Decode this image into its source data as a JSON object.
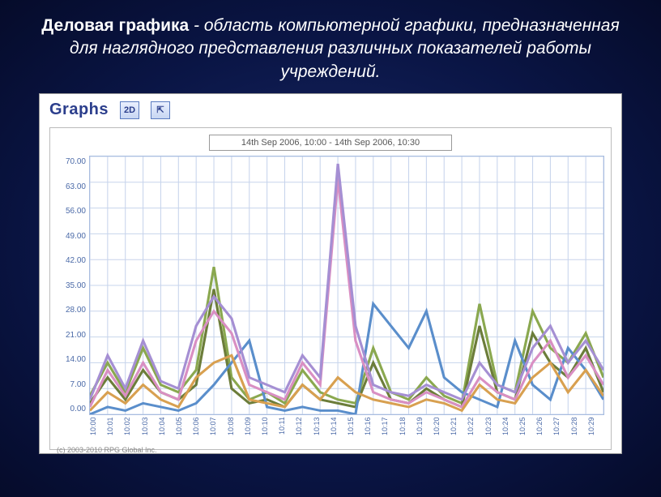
{
  "slide": {
    "title_bold": "Деловая графика",
    "title_rest": " - область компьютерной графики, предназначенная для наглядного представления различных показателей работы учреждений."
  },
  "panel": {
    "header_label": "Graphs",
    "btn_2d": "2D",
    "btn_tool": "⇱",
    "range_text": "14th Sep 2006, 10:00 - 14th Sep 2006, 10:30",
    "copyright": "(c) 2003-2010 RPG Global Inc."
  },
  "chart": {
    "type": "line",
    "background_color": "#ffffff",
    "grid_color": "#c7d4ec",
    "axis_color": "#a8bde0",
    "label_color": "#4b6aa8",
    "label_fontsize": 10,
    "ylim": [
      0,
      70
    ],
    "yticks": [
      "70.00",
      "63.00",
      "56.00",
      "49.00",
      "42.00",
      "35.00",
      "28.00",
      "21.00",
      "14.00",
      "7.00",
      "0.00"
    ],
    "x_count": 30,
    "xticks": [
      "10:00",
      "10:01",
      "10:02",
      "10:03",
      "10:04",
      "10:05",
      "10:06",
      "10:07",
      "10:08",
      "10:09",
      "10:10",
      "10:11",
      "10:12",
      "10:13",
      "10:14",
      "10:15",
      "10:16",
      "10:17",
      "10:18",
      "10:19",
      "10:20",
      "10:21",
      "10:22",
      "10:23",
      "10:24",
      "10:25",
      "10:26",
      "10:27",
      "10:28",
      "10:29"
    ],
    "line_width": 3,
    "series": [
      {
        "name": "green",
        "color": "#8aa84f",
        "values": [
          5,
          14,
          6,
          18,
          8,
          6,
          12,
          40,
          10,
          4,
          6,
          3,
          12,
          6,
          4,
          3,
          18,
          6,
          4,
          10,
          5,
          3,
          30,
          8,
          6,
          28,
          18,
          14,
          22,
          10
        ]
      },
      {
        "name": "olive",
        "color": "#6c7d3a",
        "values": [
          3,
          10,
          4,
          12,
          6,
          4,
          8,
          34,
          7,
          3,
          4,
          2,
          8,
          4,
          3,
          2,
          14,
          4,
          3,
          7,
          4,
          2,
          24,
          6,
          4,
          22,
          14,
          10,
          18,
          6
        ]
      },
      {
        "name": "blue",
        "color": "#5a8ecb",
        "values": [
          0,
          2,
          1,
          3,
          2,
          1,
          3,
          8,
          14,
          20,
          2,
          1,
          2,
          1,
          1,
          0,
          30,
          24,
          18,
          28,
          10,
          6,
          4,
          2,
          20,
          8,
          4,
          18,
          12,
          4
        ]
      },
      {
        "name": "pink",
        "color": "#d98fc3",
        "values": [
          2,
          12,
          5,
          14,
          6,
          4,
          20,
          28,
          22,
          8,
          6,
          4,
          14,
          8,
          64,
          20,
          6,
          4,
          3,
          6,
          4,
          2,
          10,
          6,
          4,
          14,
          20,
          10,
          16,
          8
        ]
      },
      {
        "name": "violet",
        "color": "#a58fd3",
        "values": [
          4,
          16,
          7,
          20,
          9,
          7,
          24,
          32,
          26,
          10,
          8,
          6,
          16,
          10,
          68,
          24,
          8,
          6,
          5,
          8,
          6,
          4,
          14,
          8,
          6,
          18,
          24,
          14,
          20,
          12
        ]
      },
      {
        "name": "orange",
        "color": "#d8a050",
        "values": [
          1,
          6,
          3,
          8,
          4,
          2,
          10,
          14,
          16,
          4,
          3,
          2,
          8,
          4,
          10,
          6,
          4,
          3,
          2,
          4,
          3,
          1,
          8,
          4,
          3,
          10,
          14,
          6,
          12,
          5
        ]
      }
    ]
  }
}
